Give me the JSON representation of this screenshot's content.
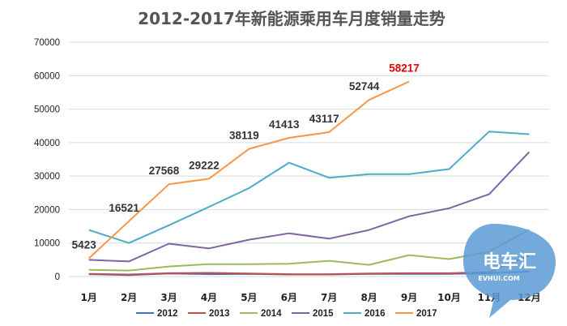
{
  "chart_data": {
    "type": "line",
    "title": "2012-2017年新能源乘用车月度销量走势",
    "categories": [
      "1月",
      "2月",
      "3月",
      "4月",
      "5月",
      "6月",
      "7月",
      "8月",
      "9月",
      "10月",
      "11月",
      "12月"
    ],
    "ylim": [
      0,
      70000
    ],
    "yticks": [
      0,
      10000,
      20000,
      30000,
      40000,
      50000,
      60000,
      70000
    ],
    "grid": true,
    "legend_position": "bottom",
    "series": [
      {
        "name": "2012",
        "color": "#4472C4",
        "values": [
          700,
          400,
          900,
          700,
          800,
          600,
          600,
          800,
          800,
          800,
          1000,
          1500
        ]
      },
      {
        "name": "2013",
        "color": "#C0504D",
        "values": [
          800,
          600,
          1000,
          1100,
          900,
          700,
          700,
          900,
          1000,
          1000,
          1300,
          6300
        ]
      },
      {
        "name": "2014",
        "color": "#9BBB59",
        "values": [
          2000,
          1800,
          3000,
          3700,
          3700,
          3800,
          4700,
          3500,
          6400,
          5200,
          7400,
          14000
        ]
      },
      {
        "name": "2015",
        "color": "#8064A2",
        "values": [
          5000,
          4500,
          9800,
          8400,
          11000,
          12900,
          11300,
          13900,
          18000,
          20400,
          24600,
          37200
        ]
      },
      {
        "name": "2016",
        "color": "#4BACC6",
        "values": [
          13900,
          10000,
          15300,
          20800,
          26400,
          34000,
          29500,
          30600,
          30600,
          32100,
          43300,
          42500
        ]
      },
      {
        "name": "2017",
        "color": "#F79646",
        "values": [
          5423,
          16521,
          27568,
          29222,
          38119,
          41413,
          43117,
          52744,
          58217,
          null,
          null,
          null
        ]
      }
    ],
    "data_labels": [
      {
        "text": "5423",
        "series": "2017",
        "index": 0,
        "color": "#333333"
      },
      {
        "text": "16521",
        "series": "2017",
        "index": 1,
        "color": "#333333"
      },
      {
        "text": "27568",
        "series": "2017",
        "index": 2,
        "color": "#333333"
      },
      {
        "text": "29222",
        "series": "2017",
        "index": 3,
        "color": "#333333"
      },
      {
        "text": "38119",
        "series": "2017",
        "index": 4,
        "color": "#333333"
      },
      {
        "text": "41413",
        "series": "2017",
        "index": 5,
        "color": "#333333"
      },
      {
        "text": "43117",
        "series": "2017",
        "index": 6,
        "color": "#333333"
      },
      {
        "text": "52744",
        "series": "2017",
        "index": 7,
        "color": "#333333"
      },
      {
        "text": "58217",
        "series": "2017",
        "index": 8,
        "color": "#E00000"
      }
    ],
    "watermark": {
      "main": "电车汇",
      "sub": "EVHUI.COM",
      "color": "#5B9BD5"
    }
  }
}
